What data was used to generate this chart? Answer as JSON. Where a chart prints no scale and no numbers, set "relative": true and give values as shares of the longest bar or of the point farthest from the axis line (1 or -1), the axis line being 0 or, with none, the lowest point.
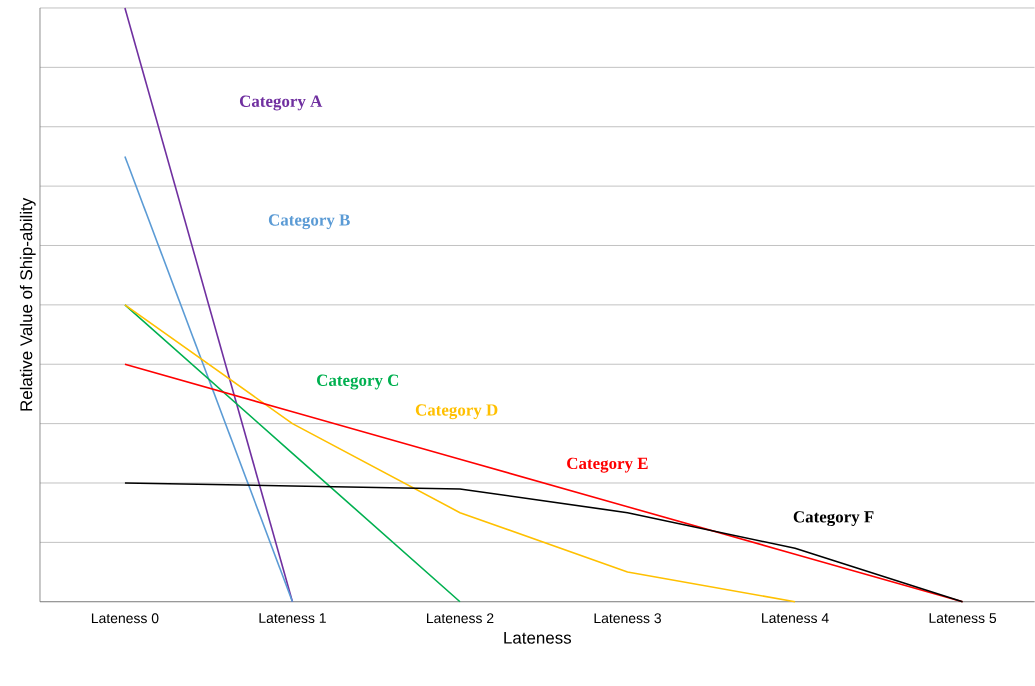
{
  "chart_data": {
    "type": "line",
    "relative": true,
    "xlabel": "Lateness",
    "ylabel": "Relative Value of Ship-ability",
    "categories": [
      "Lateness 0",
      "Lateness 1",
      "Lateness 2",
      "Lateness 3",
      "Lateness 4",
      "Lateness 5"
    ],
    "grid": "y",
    "marker": "none",
    "line_style": "solid",
    "series": [
      {
        "name": "Category A",
        "color": "#7030a0",
        "values": [
          1.0,
          0,
          null,
          null,
          null,
          null
        ]
      },
      {
        "name": "Category B",
        "color": "#5b9bd5",
        "values": [
          0.75,
          0,
          null,
          null,
          null,
          null
        ]
      },
      {
        "name": "Category C",
        "color": "#00b050",
        "values": [
          0.5,
          0.25,
          0,
          null,
          null,
          null
        ]
      },
      {
        "name": "Category D",
        "color": "#ffc000",
        "values": [
          0.5,
          0.3,
          0.15,
          0.05,
          0,
          null
        ]
      },
      {
        "name": "Category E",
        "color": "#ff0000",
        "values": [
          0.4,
          0.32,
          0.24,
          0.16,
          0.08,
          0
        ]
      },
      {
        "name": "Category F",
        "color": "#000000",
        "values": [
          0.2,
          0.195,
          0.19,
          0.15,
          0.09,
          0
        ]
      }
    ]
  }
}
